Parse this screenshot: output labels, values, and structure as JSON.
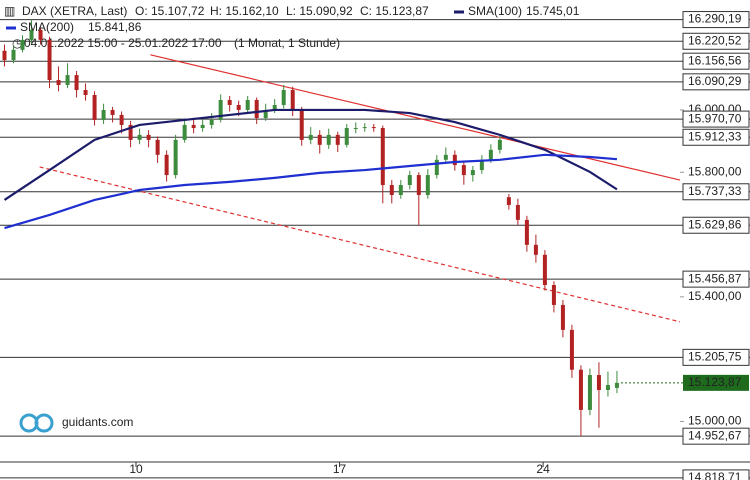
{
  "chart_data": {
    "type": "candlestick",
    "title": "DAX (XETRA, Last)",
    "ohlc_labels": [
      "O: 15.107,72",
      "H: 15.162,10",
      "L: 15.090,92",
      "C: 15.123,87"
    ],
    "period": "04.01.2022 15:00 - 25.01.2022 17:00",
    "interval": "(1 Monat, 1 Stunde)",
    "watermark": "guidants.com",
    "up_color": "#3d8b3d",
    "down_color": "#b22222",
    "candles": [
      [
        16190,
        16210,
        16140,
        16160
      ],
      [
        16160,
        16205,
        16150,
        16193
      ],
      [
        16193,
        16240,
        16185,
        16225
      ],
      [
        16225,
        16290,
        16215,
        16257
      ],
      [
        16257,
        16265,
        16210,
        16225
      ],
      [
        16225,
        16235,
        16070,
        16096
      ],
      [
        16096,
        16140,
        16060,
        16080
      ],
      [
        16080,
        16150,
        16070,
        16112
      ],
      [
        16112,
        16125,
        16040,
        16064
      ],
      [
        16064,
        16085,
        16030,
        16048
      ],
      [
        16048,
        16060,
        15950,
        15968
      ],
      [
        15968,
        16020,
        15955,
        16000
      ],
      [
        16000,
        16010,
        15960,
        15984
      ],
      [
        15984,
        15995,
        15925,
        15952
      ],
      [
        15952,
        15965,
        15880,
        15904
      ],
      [
        15904,
        15940,
        15890,
        15920
      ],
      [
        15920,
        15935,
        15880,
        15904
      ],
      [
        15904,
        15915,
        15830,
        15856
      ],
      [
        15856,
        15870,
        15770,
        15791
      ],
      [
        15791,
        15920,
        15780,
        15904
      ],
      [
        15904,
        15970,
        15895,
        15952
      ],
      [
        15952,
        15975,
        15925,
        15942
      ],
      [
        15942,
        15970,
        15930,
        15952
      ],
      [
        15952,
        15990,
        15940,
        15968
      ],
      [
        15968,
        16050,
        15960,
        16032
      ],
      [
        16032,
        16045,
        15995,
        16016
      ],
      [
        16016,
        16030,
        15980,
        16000
      ],
      [
        16000,
        16045,
        15990,
        16032
      ],
      [
        16032,
        16040,
        15955,
        15974
      ],
      [
        15974,
        16020,
        15965,
        16000
      ],
      [
        16000,
        16035,
        15990,
        16016
      ],
      [
        16016,
        16080,
        16005,
        16064
      ],
      [
        16064,
        16075,
        15980,
        16000
      ],
      [
        16000,
        16010,
        15885,
        15904
      ],
      [
        15904,
        15945,
        15890,
        15920
      ],
      [
        15920,
        15935,
        15860,
        15888
      ],
      [
        15888,
        15940,
        15875,
        15920
      ],
      [
        15920,
        15930,
        15865,
        15888
      ],
      [
        15888,
        15955,
        15880,
        15942
      ],
      [
        15942,
        15960,
        15925,
        15942
      ],
      [
        15942,
        15958,
        15930,
        15945
      ],
      [
        15945,
        15955,
        15930,
        15942
      ],
      [
        15942,
        15950,
        15700,
        15759
      ],
      [
        15759,
        15775,
        15700,
        15727
      ],
      [
        15727,
        15775,
        15715,
        15759
      ],
      [
        15759,
        15805,
        15745,
        15791
      ],
      [
        15791,
        15800,
        15630,
        15727
      ],
      [
        15727,
        15810,
        15715,
        15791
      ],
      [
        15791,
        15855,
        15780,
        15840
      ],
      [
        15840,
        15880,
        15830,
        15856
      ],
      [
        15856,
        15870,
        15805,
        15823
      ],
      [
        15823,
        15835,
        15760,
        15791
      ],
      [
        15791,
        15820,
        15770,
        15807
      ],
      [
        15807,
        15855,
        15795,
        15840
      ],
      [
        15840,
        15890,
        15830,
        15872
      ],
      [
        15872,
        15920,
        15860,
        15904
      ],
      [
        15720,
        15730,
        15680,
        15695
      ],
      [
        15695,
        15715,
        15630,
        15647
      ],
      [
        15647,
        15660,
        15545,
        15567
      ],
      [
        15567,
        15600,
        15510,
        15535
      ],
      [
        15535,
        15550,
        15420,
        15438
      ],
      [
        15438,
        15450,
        15350,
        15374
      ],
      [
        15374,
        15390,
        15270,
        15294
      ],
      [
        15294,
        15310,
        15140,
        15166
      ],
      [
        15166,
        15180,
        14952,
        15037
      ],
      [
        15037,
        15170,
        15020,
        15149
      ],
      [
        15149,
        15190,
        14980,
        15101
      ],
      [
        15101,
        15160,
        15080,
        15117
      ],
      [
        15107.72,
        15162.1,
        15090.92,
        15123.87
      ]
    ],
    "series": [
      {
        "name": "SMA(100)",
        "value_label": "15.745,01",
        "color": "#1c1c6b",
        "x": [
          0,
          5,
          10,
          15,
          20,
          25,
          30,
          35,
          40,
          45,
          50,
          55,
          60,
          65,
          68
        ],
        "values": [
          15711,
          15807,
          15904,
          15952,
          15968,
          15984,
          16000,
          16000,
          16000,
          15990,
          15961,
          15920,
          15872,
          15801,
          15745
        ]
      },
      {
        "name": "SMA(200)",
        "value_label": "15.841,86",
        "color": "#1f2fd0",
        "x": [
          0,
          5,
          10,
          15,
          20,
          25,
          30,
          35,
          40,
          45,
          50,
          55,
          60,
          65,
          68
        ],
        "values": [
          15621,
          15663,
          15711,
          15743,
          15759,
          15769,
          15782,
          15798,
          15807,
          15820,
          15833,
          15840,
          15856,
          15849,
          15842
        ]
      }
    ],
    "trendlines": [
      {
        "color": "#e03030",
        "dashed": false,
        "x": [
          16.2,
          75
        ],
        "values": [
          16177,
          15775
        ]
      },
      {
        "color": "#e03030",
        "dashed": true,
        "x": [
          3.9,
          75
        ],
        "values": [
          15817,
          15320
        ]
      }
    ],
    "levels": [
      {
        "value": 16290.19,
        "label": "16.290,19"
      },
      {
        "value": 16220.52,
        "label": "16.220,52"
      },
      {
        "value": 16156.56,
        "label": "16.156,56"
      },
      {
        "value": 16090.29,
        "label": "16.090,29"
      },
      {
        "value": 15970.7,
        "label": "15.970,70"
      },
      {
        "value": 15912.33,
        "label": "15.912,33"
      },
      {
        "value": 15737.33,
        "label": "15.737,33"
      },
      {
        "value": 15629.86,
        "label": "15.629,86"
      },
      {
        "value": 15456.87,
        "label": "15.456,87"
      },
      {
        "value": 15205.75,
        "label": "15.205,75"
      },
      {
        "value": 14952.67,
        "label": "14.952,67"
      },
      {
        "value": 14818.71,
        "label": "14.818,71"
      }
    ],
    "last_price": {
      "value": 15123.87,
      "label": "15.123,87"
    },
    "last_price_color": "#1e6b1e",
    "ylim": [
      14812,
      16353
    ],
    "yticks": [
      {
        "value": 16000,
        "label": "16.000,00"
      },
      {
        "value": 15800,
        "label": "15.800,00"
      },
      {
        "value": 15400,
        "label": "15.400,00"
      },
      {
        "value": 15000,
        "label": "15.000,00"
      }
    ],
    "xlim": [
      -0.5,
      75
    ],
    "xticks": [
      {
        "value": 14.6,
        "label": "10"
      },
      {
        "value": 37.2,
        "label": "17"
      },
      {
        "value": 59.8,
        "label": "24"
      }
    ]
  }
}
